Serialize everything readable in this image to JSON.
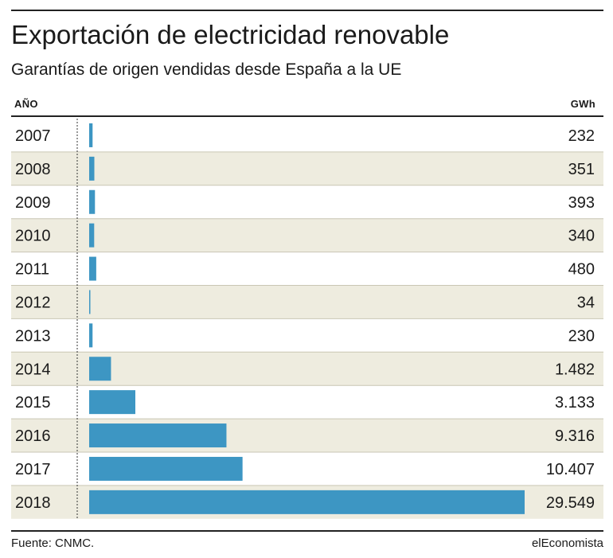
{
  "header": {
    "title": "Exportación de electricidad renovable",
    "subtitle": "Garantías de origen vendidas desde España a la UE",
    "col_year": "AÑO",
    "col_unit": "GWh"
  },
  "footer": {
    "source": "Fuente: CNMC.",
    "brand": "elEconomista"
  },
  "colors": {
    "bar": "#3d96c3",
    "stripe": "#eeecdf",
    "row_line": "#c9c6b4"
  },
  "chart_data": {
    "type": "bar",
    "orientation": "horizontal",
    "categories": [
      "2007",
      "2008",
      "2009",
      "2010",
      "2011",
      "2012",
      "2013",
      "2014",
      "2015",
      "2016",
      "2017",
      "2018"
    ],
    "values": [
      232,
      351,
      393,
      340,
      480,
      34,
      230,
      1482,
      3133,
      9316,
      10407,
      29549
    ],
    "value_labels": [
      "232",
      "351",
      "393",
      "340",
      "480",
      "34",
      "230",
      "1.482",
      "3.133",
      "9.316",
      "10.407",
      "29.549"
    ],
    "xlim": [
      0,
      29549
    ]
  }
}
